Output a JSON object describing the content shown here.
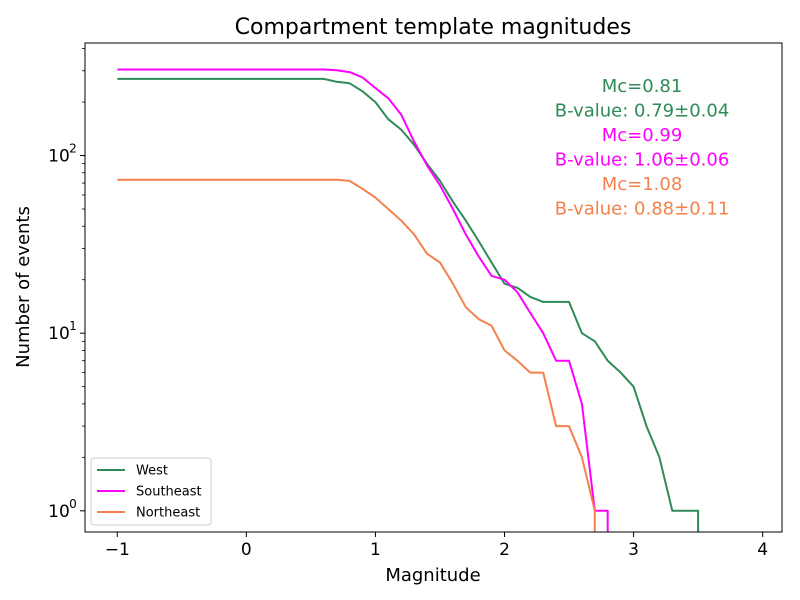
{
  "chart_data": {
    "type": "line",
    "title": "Compartment template magnitudes",
    "xlabel": "Magnitude",
    "ylabel": "Number of events",
    "xlim": [
      -1.25,
      4.15
    ],
    "ylim": [
      0.76,
      430
    ],
    "yscale": "log",
    "x_ticks": [
      {
        "value": -1,
        "label": "−1"
      },
      {
        "value": 0,
        "label": "0"
      },
      {
        "value": 1,
        "label": "1"
      },
      {
        "value": 2,
        "label": "2"
      },
      {
        "value": 3,
        "label": "3"
      },
      {
        "value": 4,
        "label": "4"
      }
    ],
    "y_ticks": [
      {
        "value": 1,
        "base": "10",
        "exp": "0"
      },
      {
        "value": 10,
        "base": "10",
        "exp": "1"
      },
      {
        "value": 100,
        "base": "10",
        "exp": "2"
      }
    ],
    "grid": false,
    "legend": {
      "position": "lower-left"
    },
    "series": [
      {
        "name": "West",
        "color": "#2e8b57",
        "points": [
          [
            -1,
            270
          ],
          [
            0.6,
            270
          ],
          [
            0.7,
            260
          ],
          [
            0.8,
            255
          ],
          [
            0.9,
            230
          ],
          [
            1.0,
            200
          ],
          [
            1.1,
            160
          ],
          [
            1.2,
            140
          ],
          [
            1.3,
            115
          ],
          [
            1.4,
            90
          ],
          [
            1.5,
            72
          ],
          [
            1.6,
            55
          ],
          [
            1.7,
            43
          ],
          [
            1.8,
            33
          ],
          [
            1.9,
            25
          ],
          [
            2.0,
            19
          ],
          [
            2.1,
            18
          ],
          [
            2.2,
            16
          ],
          [
            2.3,
            15
          ],
          [
            2.4,
            15
          ],
          [
            2.5,
            15
          ],
          [
            2.6,
            10
          ],
          [
            2.7,
            9
          ],
          [
            2.8,
            7
          ],
          [
            2.9,
            6
          ],
          [
            3.0,
            5
          ],
          [
            3.1,
            3
          ],
          [
            3.2,
            2
          ],
          [
            3.3,
            1
          ],
          [
            3.5,
            1
          ],
          [
            3.5,
            0.5
          ]
        ]
      },
      {
        "name": "Southeast",
        "color": "#ff00ff",
        "points": [
          [
            -1,
            305
          ],
          [
            0.6,
            305
          ],
          [
            0.7,
            302
          ],
          [
            0.8,
            295
          ],
          [
            0.9,
            275
          ],
          [
            1.0,
            240
          ],
          [
            1.1,
            210
          ],
          [
            1.2,
            170
          ],
          [
            1.3,
            120
          ],
          [
            1.4,
            88
          ],
          [
            1.5,
            68
          ],
          [
            1.6,
            50
          ],
          [
            1.7,
            36
          ],
          [
            1.8,
            27
          ],
          [
            1.9,
            21
          ],
          [
            2.0,
            20
          ],
          [
            2.1,
            17
          ],
          [
            2.2,
            13
          ],
          [
            2.3,
            10
          ],
          [
            2.4,
            7
          ],
          [
            2.5,
            7
          ],
          [
            2.6,
            4
          ],
          [
            2.7,
            1
          ],
          [
            2.8,
            1
          ],
          [
            2.8,
            0.5
          ]
        ]
      },
      {
        "name": "Northeast",
        "color": "#f4814c",
        "points": [
          [
            -1,
            73
          ],
          [
            0.7,
            73
          ],
          [
            0.8,
            72
          ],
          [
            0.9,
            65
          ],
          [
            1.0,
            58
          ],
          [
            1.1,
            50
          ],
          [
            1.2,
            43
          ],
          [
            1.3,
            36
          ],
          [
            1.4,
            28
          ],
          [
            1.5,
            25
          ],
          [
            1.6,
            19
          ],
          [
            1.7,
            14
          ],
          [
            1.8,
            12
          ],
          [
            1.9,
            11
          ],
          [
            2.0,
            8
          ],
          [
            2.1,
            7
          ],
          [
            2.2,
            6
          ],
          [
            2.3,
            6
          ],
          [
            2.4,
            3
          ],
          [
            2.5,
            3
          ],
          [
            2.6,
            2
          ],
          [
            2.7,
            1
          ],
          [
            2.7,
            0.5
          ]
        ]
      }
    ],
    "annotations": [
      {
        "text": "Mc=0.81",
        "color": "#2e8b57"
      },
      {
        "text": "B-value: 0.79±0.04",
        "color": "#2e8b57"
      },
      {
        "text": "Mc=0.99",
        "color": "#ff00ff"
      },
      {
        "text": "B-value: 1.06±0.06",
        "color": "#ff00ff"
      },
      {
        "text": "Mc=1.08",
        "color": "#f4814c"
      },
      {
        "text": "B-value: 0.88±0.11",
        "color": "#f4814c"
      }
    ]
  }
}
